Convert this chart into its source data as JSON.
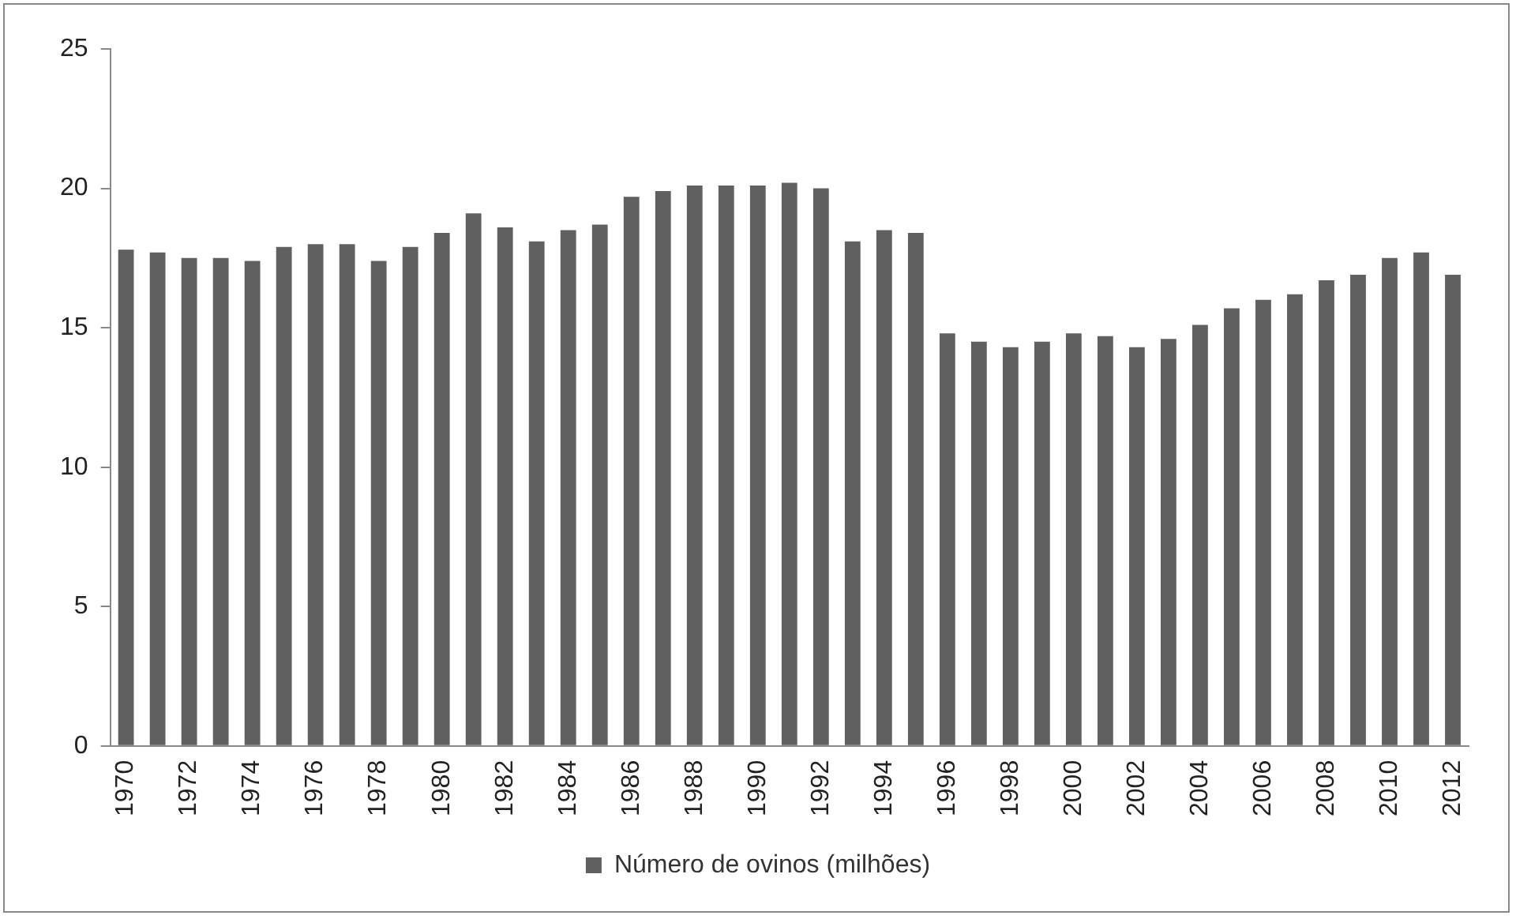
{
  "chart_data": {
    "type": "bar",
    "categories": [
      "1970",
      null,
      "1972",
      null,
      "1974",
      null,
      "1976",
      null,
      "1978",
      null,
      "1980",
      null,
      "1982",
      null,
      "1984",
      null,
      "1986",
      null,
      "1988",
      null,
      "1990",
      null,
      "1992",
      null,
      "1994",
      null,
      "1996",
      null,
      "1998",
      null,
      "2000",
      null,
      "2002",
      null,
      "2004",
      null,
      "2006",
      null,
      "2008",
      null,
      "2010",
      null,
      "2012"
    ],
    "series": [
      {
        "name": "Número de ovinos (milhões)",
        "color": "#606060",
        "values": [
          17.8,
          17.7,
          17.5,
          17.5,
          17.4,
          17.9,
          18.0,
          18.0,
          17.4,
          17.9,
          18.4,
          19.1,
          18.6,
          18.1,
          18.5,
          18.7,
          19.7,
          19.9,
          20.1,
          20.1,
          20.1,
          20.2,
          20.0,
          18.1,
          18.5,
          18.4,
          14.8,
          14.5,
          14.3,
          14.5,
          14.8,
          14.7,
          14.3,
          14.6,
          15.1,
          15.7,
          16.0,
          16.2,
          16.7,
          16.9,
          17.5,
          17.7,
          16.9
        ]
      }
    ],
    "ylim": [
      0,
      25
    ],
    "yticks": [
      0,
      5,
      10,
      15,
      20,
      25
    ],
    "grid": false,
    "legend": "bottom"
  }
}
